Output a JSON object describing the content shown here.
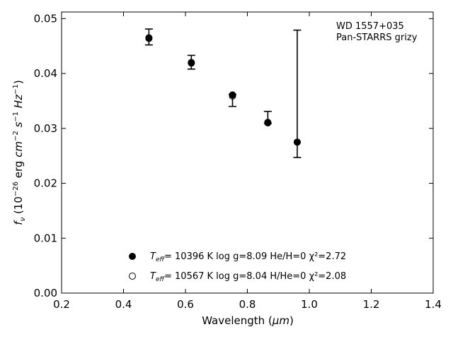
{
  "chart_data": {
    "type": "scatter",
    "xlabel_main": "Wavelength (",
    "xlabel_unit": "μm",
    "xlabel_close": ")",
    "ylabel": "f_ν (10^−26 erg cm^−2 s^−1 Hz^−1)",
    "xlim": [
      0.2,
      1.4
    ],
    "ylim": [
      0.0,
      0.0512
    ],
    "x_ticks": [
      0.2,
      0.4,
      0.6,
      0.8,
      1.0,
      1.2,
      1.4
    ],
    "x_tick_labels": [
      "0.2",
      "0.4",
      "0.6",
      "0.8",
      "1.0",
      "1.2",
      "1.4"
    ],
    "y_ticks": [
      0.0,
      0.01,
      0.02,
      0.03,
      0.04,
      0.05
    ],
    "y_tick_labels": [
      "0.00",
      "0.01",
      "0.02",
      "0.03",
      "0.04",
      "0.05"
    ],
    "grid": false,
    "annotation": [
      "WD 1557+035",
      "Pan-STARRS grizy"
    ],
    "observed": {
      "x": [
        0.482,
        0.619,
        0.752,
        0.866,
        0.961
      ],
      "y": [
        0.0467,
        0.0419,
        0.0361,
        0.0311,
        0.0275
      ],
      "yerr_low": [
        0.0452,
        0.0408,
        0.034,
        0.0309,
        0.0247
      ],
      "yerr_high": [
        0.0481,
        0.0433,
        0.0362,
        0.0331,
        0.0479
      ]
    },
    "series": [
      {
        "marker": "filled-circle",
        "label": "= 10396 K  log g=8.09  He/H=0  χ²=2.72",
        "x": [
          0.482,
          0.619,
          0.752,
          0.866,
          0.961
        ],
        "y": [
          0.0464,
          0.042,
          0.0361,
          0.031,
          0.0275
        ]
      },
      {
        "marker": "open-circle",
        "label": "= 10567 K  log g=8.04  H/He=0  χ²=2.08",
        "x": [
          0.482,
          0.619,
          0.752,
          0.866,
          0.961
        ],
        "y": [
          0.0465,
          0.0419,
          0.0359,
          0.0311,
          0.0275
        ]
      }
    ],
    "legend_prefix": "T",
    "legend_prefix_sub": "eff",
    "legend_position": "lower-center"
  }
}
